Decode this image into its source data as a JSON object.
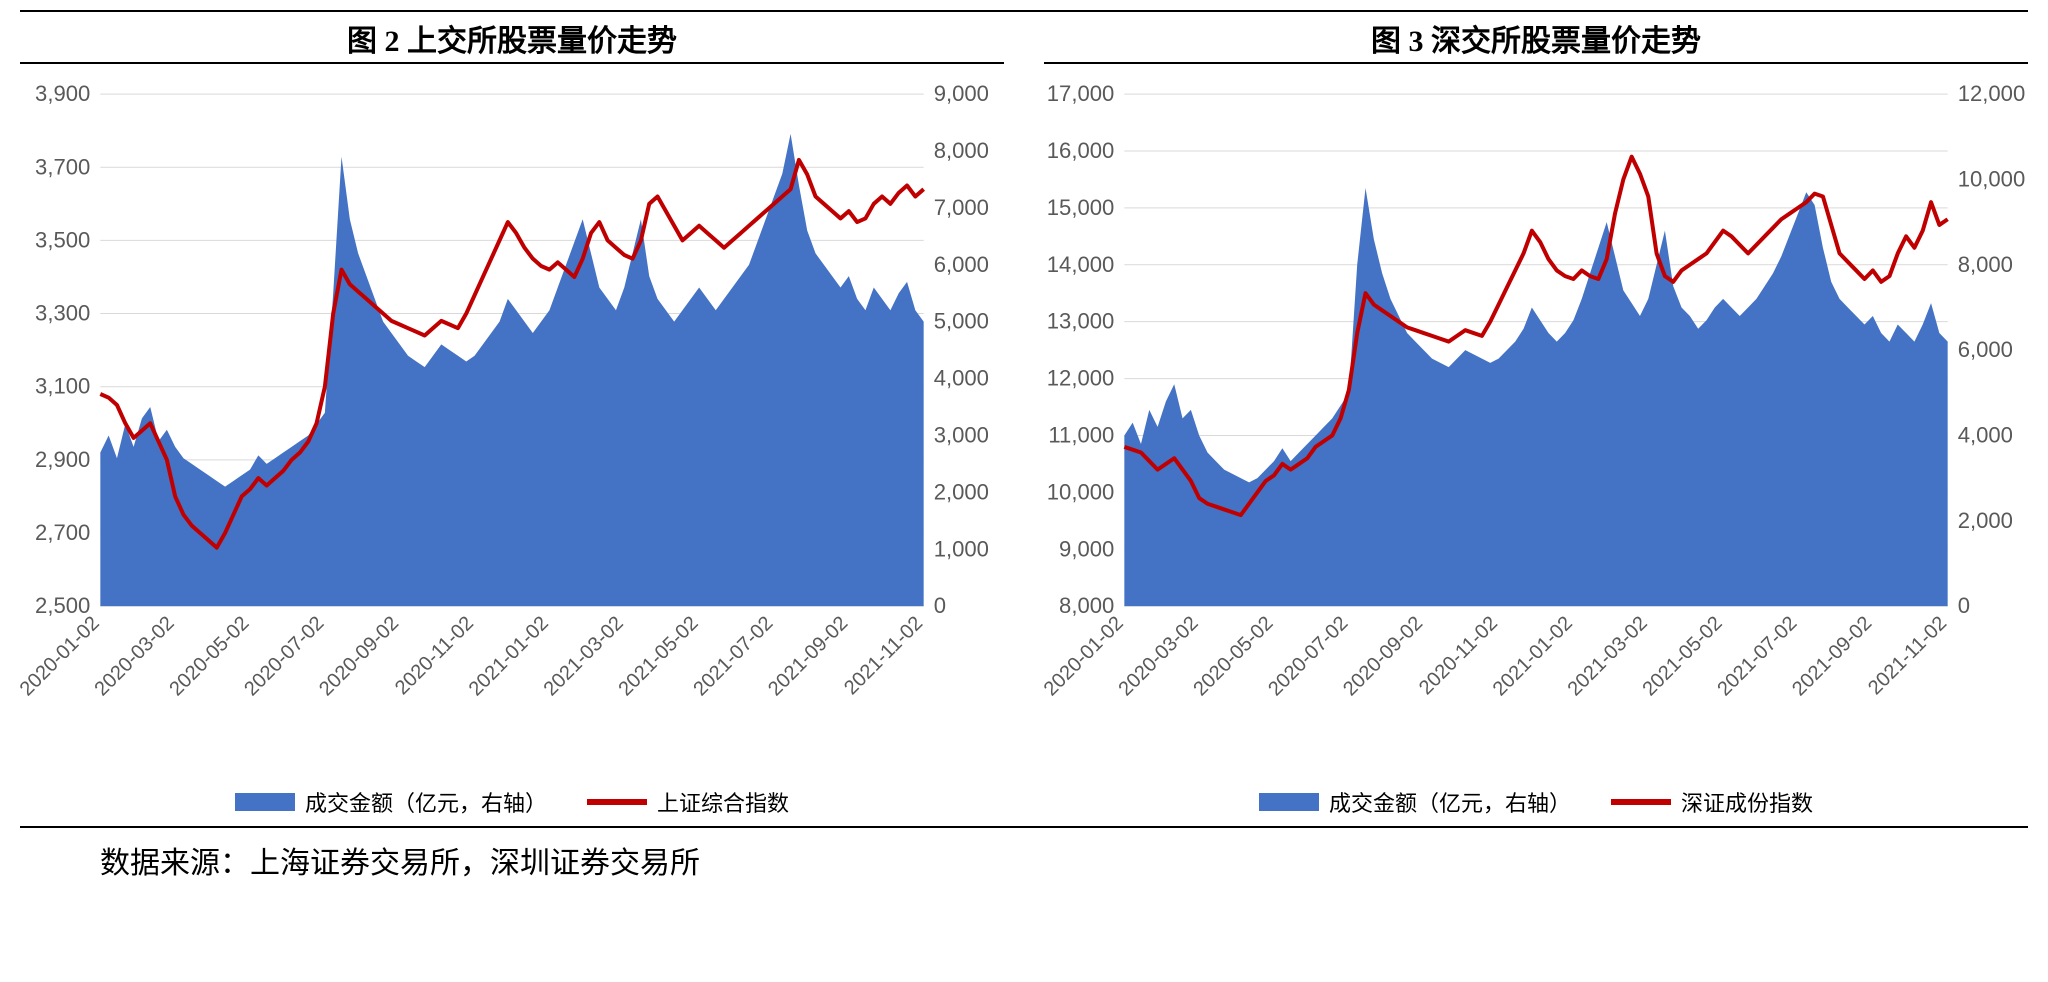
{
  "source_line": "数据来源：上海证券交易所，深圳证券交易所",
  "colors": {
    "area_fill": "#4472c4",
    "line_stroke": "#c00000",
    "grid": "#d9d9d9",
    "axis_text": "#595959",
    "background": "#ffffff"
  },
  "typography": {
    "title_fontsize_pt": 22,
    "axis_fontsize_pt": 16,
    "legend_fontsize_pt": 16,
    "source_fontsize_pt": 22
  },
  "charts": [
    {
      "id": "sse",
      "title": "图 2  上交所股票量价走势",
      "type": "combo-area-line-dual-axis",
      "x_labels": [
        "2020-01-02",
        "2020-03-02",
        "2020-05-02",
        "2020-07-02",
        "2020-09-02",
        "2020-11-02",
        "2021-01-02",
        "2021-03-02",
        "2021-05-02",
        "2021-07-02",
        "2021-09-02",
        "2021-11-02"
      ],
      "left_axis": {
        "min": 2500,
        "max": 3900,
        "step": 200,
        "label": ""
      },
      "right_axis": {
        "min": 0,
        "max": 9000,
        "step": 1000,
        "label": ""
      },
      "legend": [
        {
          "text": "成交金额（亿元，右轴）",
          "kind": "area",
          "color": "#4472c4"
        },
        {
          "text": "上证综合指数",
          "kind": "line",
          "color": "#c00000"
        }
      ],
      "series_area_right": [
        2700,
        3000,
        2600,
        3200,
        2800,
        3300,
        3500,
        2900,
        3100,
        2800,
        2600,
        2500,
        2400,
        2300,
        2200,
        2100,
        2200,
        2300,
        2400,
        2650,
        2500,
        2600,
        2700,
        2800,
        2900,
        3000,
        3200,
        3400,
        5500,
        7900,
        6800,
        6200,
        5800,
        5400,
        5000,
        4800,
        4600,
        4400,
        4300,
        4200,
        4400,
        4600,
        4500,
        4400,
        4300,
        4400,
        4600,
        4800,
        5000,
        5400,
        5200,
        5000,
        4800,
        5000,
        5200,
        5600,
        6000,
        6400,
        6800,
        6200,
        5600,
        5400,
        5200,
        5600,
        6200,
        6800,
        5800,
        5400,
        5200,
        5000,
        5200,
        5400,
        5600,
        5400,
        5200,
        5400,
        5600,
        5800,
        6000,
        6400,
        6800,
        7200,
        7600,
        8300,
        7400,
        6600,
        6200,
        6000,
        5800,
        5600,
        5800,
        5400,
        5200,
        5600,
        5400,
        5200,
        5500,
        5700,
        5200,
        5000
      ],
      "series_line_left": [
        3080,
        3070,
        3050,
        3000,
        2960,
        2980,
        3000,
        2950,
        2900,
        2800,
        2750,
        2720,
        2700,
        2680,
        2660,
        2700,
        2750,
        2800,
        2820,
        2850,
        2830,
        2850,
        2870,
        2900,
        2920,
        2950,
        3000,
        3100,
        3300,
        3420,
        3380,
        3360,
        3340,
        3320,
        3300,
        3280,
        3270,
        3260,
        3250,
        3240,
        3260,
        3280,
        3270,
        3260,
        3300,
        3350,
        3400,
        3450,
        3500,
        3550,
        3520,
        3480,
        3450,
        3430,
        3420,
        3440,
        3420,
        3400,
        3450,
        3520,
        3550,
        3500,
        3480,
        3460,
        3450,
        3500,
        3600,
        3620,
        3580,
        3540,
        3500,
        3520,
        3540,
        3520,
        3500,
        3480,
        3500,
        3520,
        3540,
        3560,
        3580,
        3600,
        3620,
        3640,
        3720,
        3680,
        3620,
        3600,
        3580,
        3560,
        3580,
        3550,
        3560,
        3600,
        3620,
        3600,
        3630,
        3650,
        3620,
        3640
      ],
      "line_width": 4,
      "area_opacity": 1.0
    },
    {
      "id": "szse",
      "title": "图 3  深交所股票量价走势",
      "type": "combo-area-line-dual-axis",
      "x_labels": [
        "2020-01-02",
        "2020-03-02",
        "2020-05-02",
        "2020-07-02",
        "2020-09-02",
        "2020-11-02",
        "2021-01-02",
        "2021-03-02",
        "2021-05-02",
        "2021-07-02",
        "2021-09-02",
        "2021-11-02"
      ],
      "left_axis": {
        "min": 8000,
        "max": 17000,
        "step": 1000,
        "label": ""
      },
      "right_axis": {
        "min": 0,
        "max": 12000,
        "step": 2000,
        "label": ""
      },
      "legend": [
        {
          "text": "成交金额（亿元，右轴）",
          "kind": "area",
          "color": "#4472c4"
        },
        {
          "text": "深证成份指数",
          "kind": "line",
          "color": "#c00000"
        }
      ],
      "series_area_right": [
        4000,
        4300,
        3800,
        4600,
        4200,
        4800,
        5200,
        4400,
        4600,
        4000,
        3600,
        3400,
        3200,
        3100,
        3000,
        2900,
        3000,
        3200,
        3400,
        3700,
        3400,
        3600,
        3800,
        4000,
        4200,
        4400,
        4700,
        5000,
        8000,
        9800,
        8600,
        7800,
        7200,
        6800,
        6400,
        6200,
        6000,
        5800,
        5700,
        5600,
        5800,
        6000,
        5900,
        5800,
        5700,
        5800,
        6000,
        6200,
        6500,
        7000,
        6700,
        6400,
        6200,
        6400,
        6700,
        7200,
        7800,
        8400,
        9000,
        8200,
        7400,
        7100,
        6800,
        7200,
        8000,
        8800,
        7500,
        7000,
        6800,
        6500,
        6700,
        7000,
        7200,
        7000,
        6800,
        7000,
        7200,
        7500,
        7800,
        8200,
        8700,
        9200,
        9700,
        9400,
        8400,
        7600,
        7200,
        7000,
        6800,
        6600,
        6800,
        6400,
        6200,
        6600,
        6400,
        6200,
        6600,
        7100,
        6400,
        6200
      ],
      "series_line_left": [
        10800,
        10750,
        10700,
        10550,
        10400,
        10500,
        10600,
        10400,
        10200,
        9900,
        9800,
        9750,
        9700,
        9650,
        9600,
        9800,
        10000,
        10200,
        10300,
        10500,
        10400,
        10500,
        10600,
        10800,
        10900,
        11000,
        11300,
        11800,
        12800,
        13500,
        13300,
        13200,
        13100,
        13000,
        12900,
        12850,
        12800,
        12750,
        12700,
        12650,
        12750,
        12850,
        12800,
        12750,
        13000,
        13300,
        13600,
        13900,
        14200,
        14600,
        14400,
        14100,
        13900,
        13800,
        13750,
        13900,
        13800,
        13750,
        14100,
        14900,
        15500,
        15900,
        15600,
        15200,
        14200,
        13800,
        13700,
        13900,
        14000,
        14100,
        14200,
        14400,
        14600,
        14500,
        14350,
        14200,
        14350,
        14500,
        14650,
        14800,
        14900,
        15000,
        15100,
        15250,
        15200,
        14700,
        14200,
        14050,
        13900,
        13750,
        13900,
        13700,
        13800,
        14200,
        14500,
        14300,
        14600,
        15100,
        14700,
        14800
      ],
      "line_width": 4,
      "area_opacity": 1.0
    }
  ]
}
